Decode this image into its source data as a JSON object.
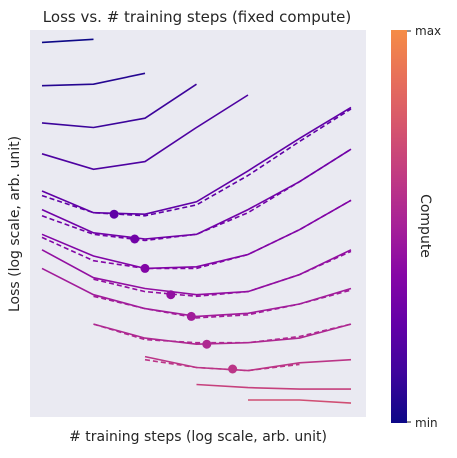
{
  "chart_data": {
    "type": "line",
    "title": "Loss vs. # training steps (fixed compute)",
    "xlabel": "# training steps (log scale, arb. unit)",
    "ylabel": "Loss (log scale, arb. unit)",
    "x_scale": "log",
    "y_scale": "log",
    "xlim": [
      0,
      10
    ],
    "ylim": [
      0,
      25
    ],
    "grid": false,
    "axes_background": "#eaeaf2",
    "x": [
      0,
      1,
      2,
      3,
      4,
      5,
      6
    ],
    "solid_series": [
      {
        "x": [
          0,
          1
        ],
        "y": [
          24.2,
          24.4
        ]
      },
      {
        "x": [
          0,
          1,
          2
        ],
        "y": [
          21.4,
          21.5,
          22.2
        ]
      },
      {
        "x": [
          0,
          1,
          2,
          3
        ],
        "y": [
          19.0,
          18.7,
          19.3,
          21.5
        ]
      },
      {
        "x": [
          0,
          1,
          2,
          3,
          4
        ],
        "y": [
          17.0,
          16.0,
          16.5,
          18.7,
          20.8
        ]
      },
      {
        "x": [
          0,
          1,
          2,
          3,
          4,
          5,
          6
        ],
        "y": [
          14.6,
          13.2,
          13.1,
          13.9,
          15.9,
          18.0,
          20.0
        ]
      },
      {
        "x": [
          0,
          1,
          2,
          3,
          4,
          5,
          6
        ],
        "y": [
          13.4,
          11.9,
          11.5,
          11.8,
          13.4,
          15.2,
          17.3
        ]
      },
      {
        "x": [
          0,
          1,
          2,
          3,
          4,
          5,
          6
        ],
        "y": [
          11.8,
          10.4,
          9.6,
          9.7,
          10.5,
          12.1,
          14.0
        ]
      },
      {
        "x": [
          0,
          1,
          2,
          3,
          4,
          5,
          6
        ],
        "y": [
          10.8,
          9.0,
          8.3,
          7.9,
          8.1,
          9.2,
          10.8
        ]
      },
      {
        "x": [
          0,
          1,
          2,
          3,
          4,
          5,
          6
        ],
        "y": [
          9.6,
          7.9,
          7.0,
          6.5,
          6.7,
          7.3,
          8.3
        ]
      },
      {
        "x": [
          1,
          2,
          3,
          4,
          5,
          6
        ],
        "y": [
          6.0,
          5.1,
          4.7,
          4.8,
          5.1,
          6.0
        ]
      },
      {
        "x": [
          2,
          3,
          4,
          5,
          6
        ],
        "y": [
          3.9,
          3.2,
          3.0,
          3.5,
          3.7
        ]
      },
      {
        "x": [
          3,
          4,
          5,
          6
        ],
        "y": [
          2.1,
          1.9,
          1.8,
          1.8
        ]
      },
      {
        "x": [
          4,
          5,
          6
        ],
        "y": [
          1.1,
          1.1,
          0.9
        ]
      }
    ],
    "dashed_series": [
      {
        "x": [
          0,
          1,
          2,
          3,
          4,
          5,
          6
        ],
        "y": [
          14.3,
          13.2,
          13.0,
          13.7,
          15.6,
          17.8,
          19.9
        ]
      },
      {
        "x": [
          0,
          1,
          2,
          3,
          4,
          5,
          6
        ],
        "y": [
          13.0,
          11.8,
          11.4,
          11.8,
          13.2,
          15.2,
          17.3
        ]
      },
      {
        "x": [
          0,
          1,
          2,
          3,
          4,
          5,
          6
        ],
        "y": [
          11.6,
          10.1,
          9.6,
          9.6,
          10.5,
          12.1,
          14.0
        ]
      },
      {
        "x": [
          1,
          2,
          3,
          4,
          5,
          6
        ],
        "y": [
          8.9,
          8.1,
          7.8,
          8.1,
          9.2,
          10.7
        ]
      },
      {
        "x": [
          1,
          2,
          3,
          4,
          5,
          6
        ],
        "y": [
          7.8,
          7.0,
          6.4,
          6.6,
          7.3,
          8.2
        ]
      },
      {
        "x": [
          1,
          2,
          3,
          4,
          5,
          6
        ],
        "y": [
          6.0,
          5.0,
          4.8,
          4.8,
          5.2,
          6.0
        ]
      },
      {
        "x": [
          2,
          3,
          4,
          5
        ],
        "y": [
          3.7,
          3.2,
          3.0,
          3.4
        ]
      }
    ],
    "optima_points": [
      {
        "x": 1.4,
        "y": 13.1
      },
      {
        "x": 1.8,
        "y": 11.5
      },
      {
        "x": 2.0,
        "y": 9.6
      },
      {
        "x": 2.5,
        "y": 7.9
      },
      {
        "x": 2.9,
        "y": 6.5
      },
      {
        "x": 3.2,
        "y": 4.7
      },
      {
        "x": 3.7,
        "y": 3.1
      }
    ],
    "colorbar": {
      "label": "Compute",
      "tick_labels": [
        "min",
        "max"
      ],
      "colormap": "plasma",
      "range": [
        0,
        0.72
      ]
    }
  }
}
